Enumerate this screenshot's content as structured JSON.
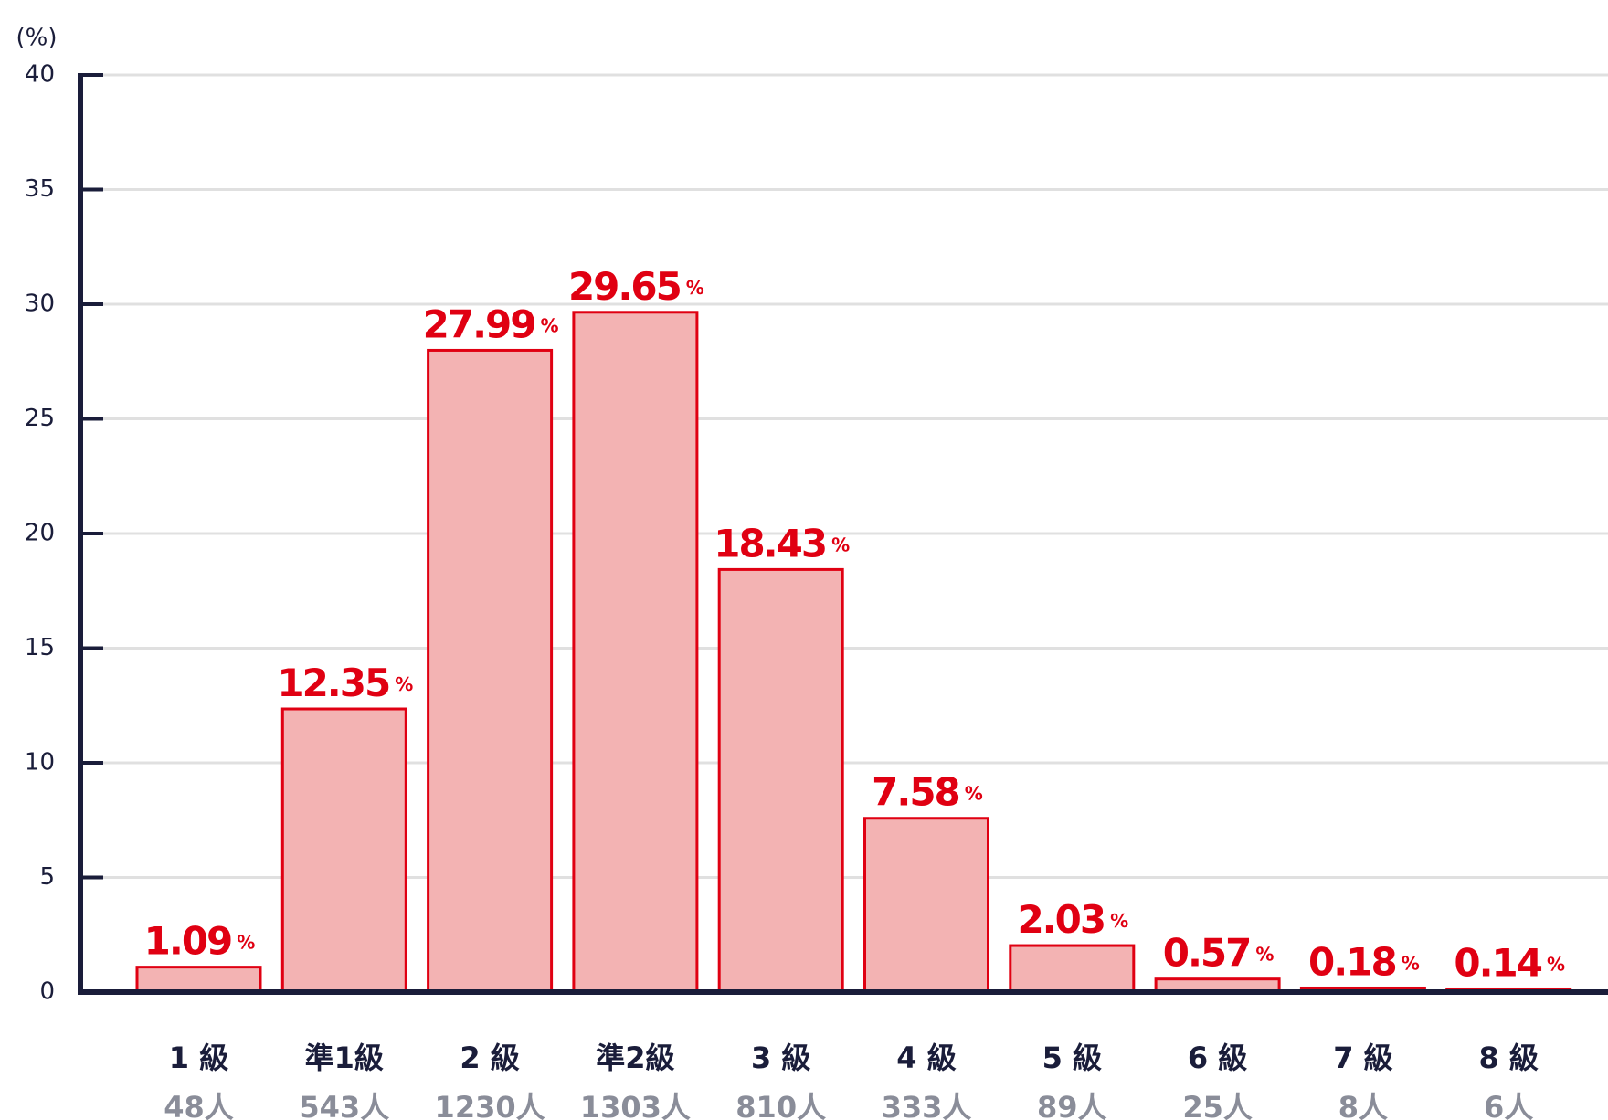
{
  "chart_data": {
    "type": "bar",
    "y_unit": "(%)",
    "categories": [
      "1 級",
      "準1級",
      "2 級",
      "準2級",
      "3 級",
      "4 級",
      "5 級",
      "6 級",
      "7 級",
      "8 級"
    ],
    "counts_labels": [
      "48人",
      "543人",
      "1230人",
      "1303人",
      "810人",
      "333人",
      "89人",
      "25人",
      "8人",
      "6人"
    ],
    "values": [
      1.09,
      12.35,
      27.99,
      29.65,
      18.43,
      7.58,
      2.03,
      0.57,
      0.18,
      0.14
    ],
    "value_unit": "%",
    "color": "#f3b3b3",
    "edge_color": "#e00012",
    "ylim": [
      0,
      40
    ],
    "yticks": [
      0,
      5,
      10,
      15,
      20,
      25,
      30,
      35,
      40
    ],
    "grid": true
  }
}
